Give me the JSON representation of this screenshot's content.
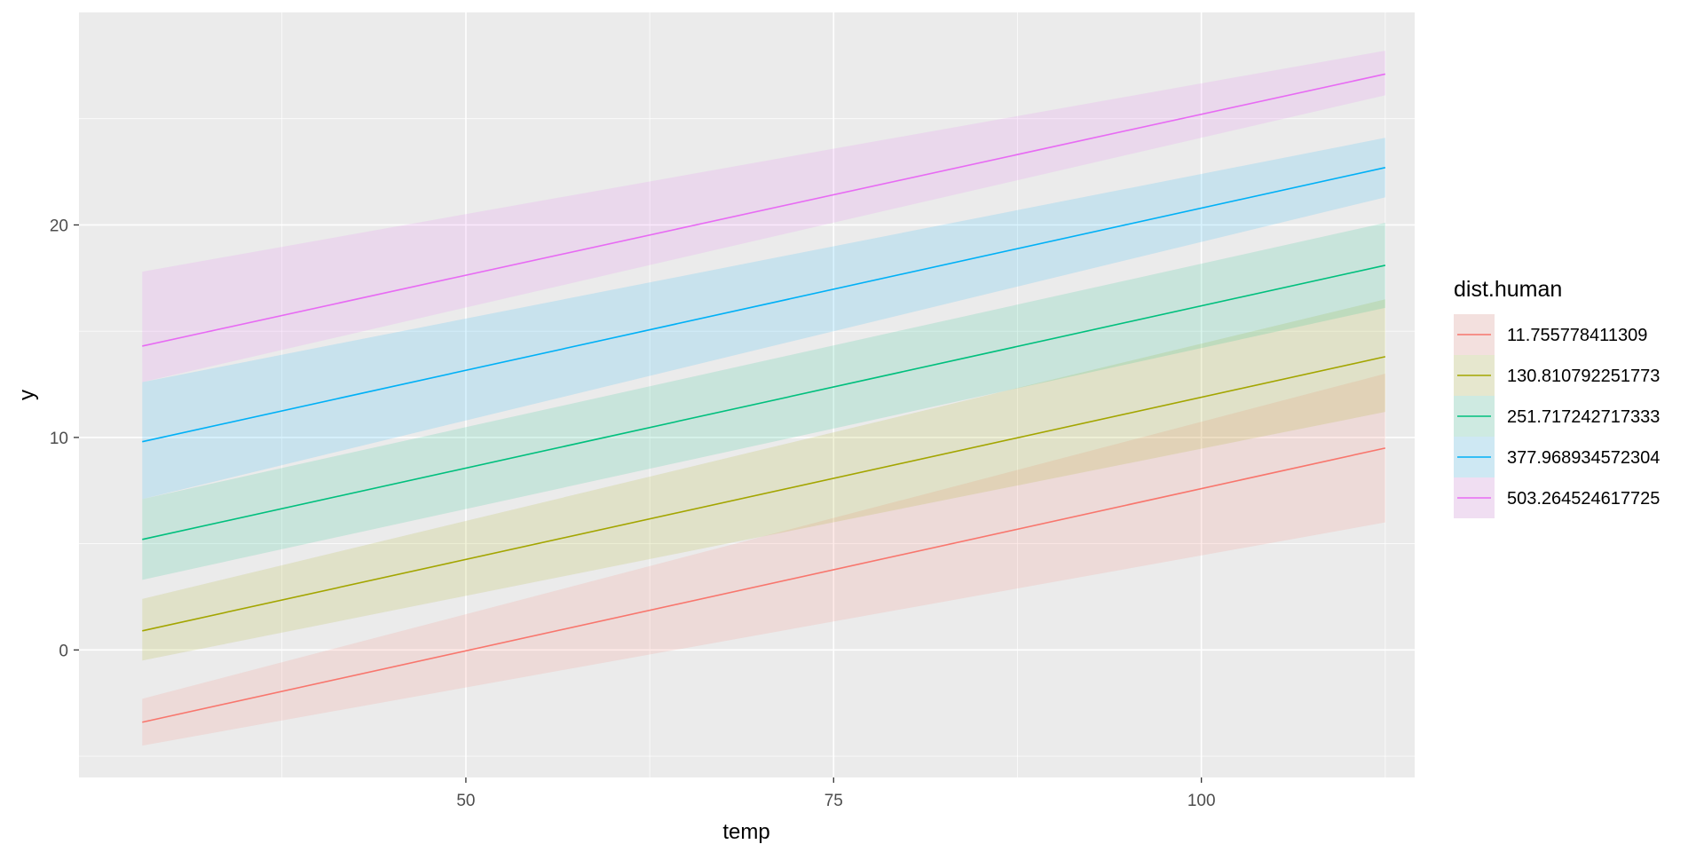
{
  "chart_data": {
    "type": "line",
    "title": "",
    "xlabel": "temp",
    "ylabel": "y",
    "xlim": [
      23.7,
      114.5
    ],
    "ylim": [
      -6.0,
      30.0
    ],
    "x_ticks": [
      50,
      75,
      100
    ],
    "y_ticks": [
      0,
      10,
      20
    ],
    "x_minor": [
      37.5,
      62.5,
      87.5,
      112.5
    ],
    "y_minor": [
      -5,
      5,
      15,
      25
    ],
    "grid": true,
    "legend": {
      "title": "dist.human",
      "position": "right"
    },
    "x": [
      28,
      112.5
    ],
    "series": [
      {
        "name": "11.755778411309",
        "color": "#F8766D",
        "y": [
          -3.4,
          9.5
        ],
        "lower": [
          -4.5,
          6.0
        ],
        "upper": [
          -2.3,
          13.0
        ]
      },
      {
        "name": "130.810792251773",
        "color": "#A3A500",
        "y": [
          0.9,
          13.8
        ],
        "lower": [
          -0.5,
          11.2
        ],
        "upper": [
          2.4,
          16.5
        ]
      },
      {
        "name": "251.717242717333",
        "color": "#00BF7D",
        "y": [
          5.2,
          18.1
        ],
        "lower": [
          3.3,
          16.1
        ],
        "upper": [
          7.1,
          20.1
        ]
      },
      {
        "name": "377.968934572304",
        "color": "#00B0F6",
        "y": [
          9.8,
          22.7
        ],
        "lower": [
          7.1,
          21.3
        ],
        "upper": [
          12.6,
          24.1
        ]
      },
      {
        "name": "503.264524617725",
        "color": "#E76BF3",
        "y": [
          14.3,
          27.1
        ],
        "lower": [
          12.6,
          26.1
        ],
        "upper": [
          17.8,
          28.2
        ]
      }
    ]
  }
}
